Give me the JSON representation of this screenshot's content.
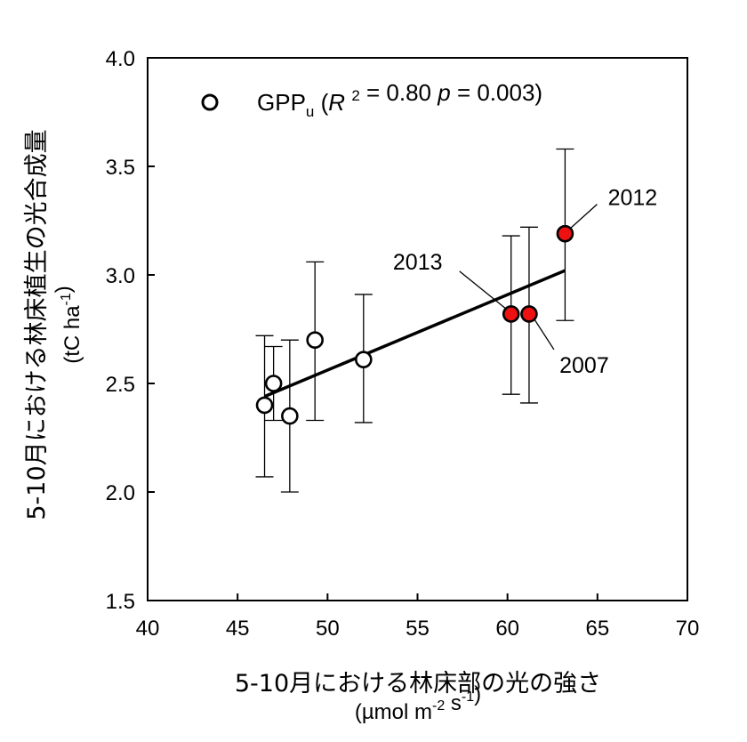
{
  "chart_data": {
    "type": "scatter",
    "xlabel": "5-10月における林床部の光の強さ",
    "xunit": "(µmol m-2 s-1)",
    "ylabel": "5-10月における林床植生の光合成量",
    "yunit": "(tC ha-1)",
    "xlim": [
      40,
      70
    ],
    "ylim": [
      1.5,
      4.0
    ],
    "x_ticks": [
      "40",
      "45",
      "50",
      "55",
      "60",
      "65",
      "70"
    ],
    "y_ticks": [
      "1.5",
      "2.0",
      "2.5",
      "3.0",
      "3.5",
      "4.0"
    ],
    "grid": false,
    "legend": {
      "position": "top-left",
      "series_name": "GPPu",
      "stats": "(R 2 = 0.80 p = 0.003)"
    },
    "points": [
      {
        "x": 46.5,
        "y": 2.4,
        "err_low": 2.07,
        "err_high": 2.72,
        "highlight": false
      },
      {
        "x": 47.0,
        "y": 2.5,
        "err_low": 2.33,
        "err_high": 2.67,
        "highlight": false
      },
      {
        "x": 47.9,
        "y": 2.35,
        "err_low": 2.0,
        "err_high": 2.7,
        "highlight": false
      },
      {
        "x": 49.3,
        "y": 2.7,
        "err_low": 2.33,
        "err_high": 3.06,
        "highlight": false
      },
      {
        "x": 52.0,
        "y": 2.61,
        "err_low": 2.32,
        "err_high": 2.91,
        "highlight": false
      },
      {
        "x": 60.2,
        "y": 2.82,
        "err_low": 2.45,
        "err_high": 3.18,
        "highlight": true,
        "label": "2013"
      },
      {
        "x": 61.2,
        "y": 2.82,
        "err_low": 2.41,
        "err_high": 3.22,
        "highlight": true,
        "label": "2007"
      },
      {
        "x": 63.2,
        "y": 3.19,
        "err_low": 2.79,
        "err_high": 3.58,
        "highlight": true,
        "label": "2012"
      }
    ],
    "regression": {
      "x": [
        46.5,
        63.2
      ],
      "y": [
        2.44,
        3.02
      ]
    },
    "highlight_color": "#ee1111",
    "open_marker_color": "#ffffff",
    "line_color": "#000000"
  }
}
